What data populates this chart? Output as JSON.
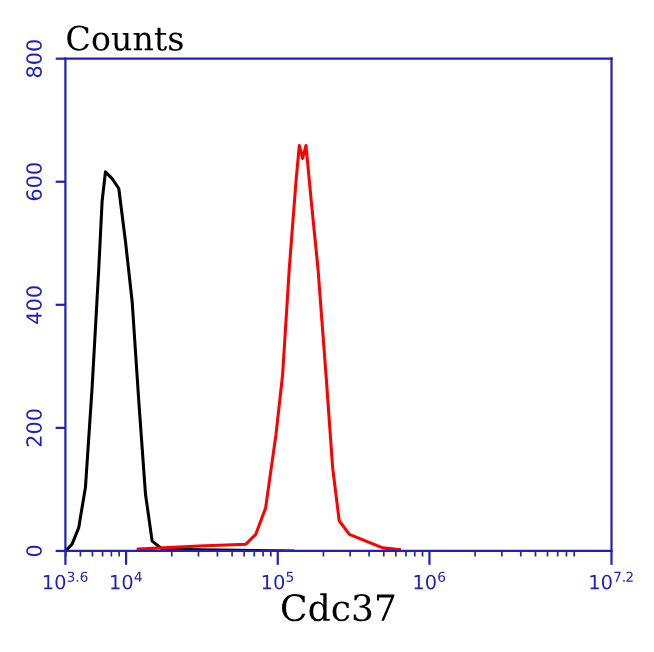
{
  "chart_data": {
    "type": "line",
    "title": "Counts",
    "xlabel": "Cdc37",
    "log": "x",
    "xlim": [
      3981,
      15850000
    ],
    "xticks": [
      {
        "value": 3981,
        "label": "10$^{3.6}$"
      },
      {
        "value": 10000,
        "label": "10$^{4}$"
      },
      {
        "value": 100000,
        "label": "10$^{5}$"
      },
      {
        "value": 1000000,
        "label": "10$^{6}$"
      },
      {
        "value": 15850000,
        "label": "10$^{7.2}$"
      }
    ],
    "ylim": [
      0,
      800
    ],
    "yticks": [
      0,
      200,
      400,
      600,
      800
    ],
    "grid": false,
    "legend": false,
    "marker": "none",
    "line_style": "solid",
    "series": [
      {
        "color": "#000000",
        "x": [
          3981,
          4406,
          4875,
          5395,
          5970,
          6607,
          6950,
          7311,
          8091,
          8954,
          9908,
          10970,
          12130,
          13430,
          14860,
          17340,
          30200,
          125900
        ],
        "values": [
          0,
          11,
          38,
          103,
          265,
          459,
          568,
          616,
          605,
          589,
          503,
          405,
          243,
          92,
          16,
          3,
          2,
          0
        ]
      },
      {
        "color": "#ff0000",
        "x": [
          12020,
          30200,
          61660,
          71610,
          83180,
          97280,
          107600,
          119100,
          131800,
          138700,
          145900,
          153500,
          166300,
          184100,
          208000,
          230100,
          254100,
          296500,
          381900,
          492000,
          633900
        ],
        "values": [
          3,
          8,
          11,
          27,
          70,
          189,
          286,
          459,
          600,
          659,
          638,
          659,
          568,
          459,
          286,
          135,
          49,
          27,
          16,
          5,
          2
        ]
      }
    ]
  }
}
